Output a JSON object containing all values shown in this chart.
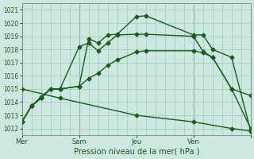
{
  "bg_color": "#cce8e0",
  "grid_color": "#99ccbb",
  "line_color": "#1a5c1a",
  "marker": "D",
  "markersize": 2.5,
  "linewidth": 1.0,
  "xlabel": "Pression niveau de la mer( hPa )",
  "ylim": [
    1011.5,
    1021.5
  ],
  "yticks": [
    1012,
    1013,
    1014,
    1015,
    1016,
    1017,
    1018,
    1019,
    1020,
    1021
  ],
  "xlim": [
    0,
    24
  ],
  "xtick_positions": [
    0,
    6,
    12,
    18,
    24
  ],
  "xtick_labels": [
    "Mer",
    "Sam",
    "Jeu",
    "Ven",
    ""
  ],
  "vline_positions": [
    0,
    6,
    18,
    24
  ],
  "series": [
    {
      "x": [
        0,
        1,
        2,
        3,
        4,
        6,
        7,
        8,
        9,
        10,
        12,
        13,
        18,
        19,
        20,
        22,
        24
      ],
      "y": [
        1012.5,
        1013.7,
        1014.3,
        1015.0,
        1015.0,
        1015.2,
        1018.8,
        1018.5,
        1019.1,
        1019.15,
        1020.5,
        1020.55,
        1019.1,
        1019.1,
        1018.0,
        1017.4,
        1011.8
      ]
    },
    {
      "x": [
        0,
        1,
        2,
        3,
        4,
        6,
        7,
        8,
        9,
        10,
        12,
        13,
        18,
        19,
        20,
        22,
        24
      ],
      "y": [
        1012.5,
        1013.7,
        1014.4,
        1015.0,
        1015.0,
        1018.2,
        1018.5,
        1017.9,
        1018.5,
        1019.1,
        1019.15,
        1019.15,
        1019.0,
        1017.85,
        1017.4,
        1015.0,
        1014.5
      ]
    },
    {
      "x": [
        0,
        1,
        2,
        3,
        4,
        6,
        7,
        8,
        9,
        10,
        12,
        13,
        18,
        19,
        20,
        22,
        24
      ],
      "y": [
        1012.5,
        1013.7,
        1014.3,
        1015.0,
        1015.0,
        1015.2,
        1015.8,
        1016.2,
        1016.8,
        1017.2,
        1017.8,
        1017.9,
        1017.9,
        1017.75,
        1017.4,
        1015.0,
        1012.0
      ]
    },
    {
      "x": [
        0,
        4,
        12,
        18,
        22,
        24
      ],
      "y": [
        1015.0,
        1014.3,
        1013.0,
        1012.5,
        1012.0,
        1011.8
      ]
    }
  ]
}
